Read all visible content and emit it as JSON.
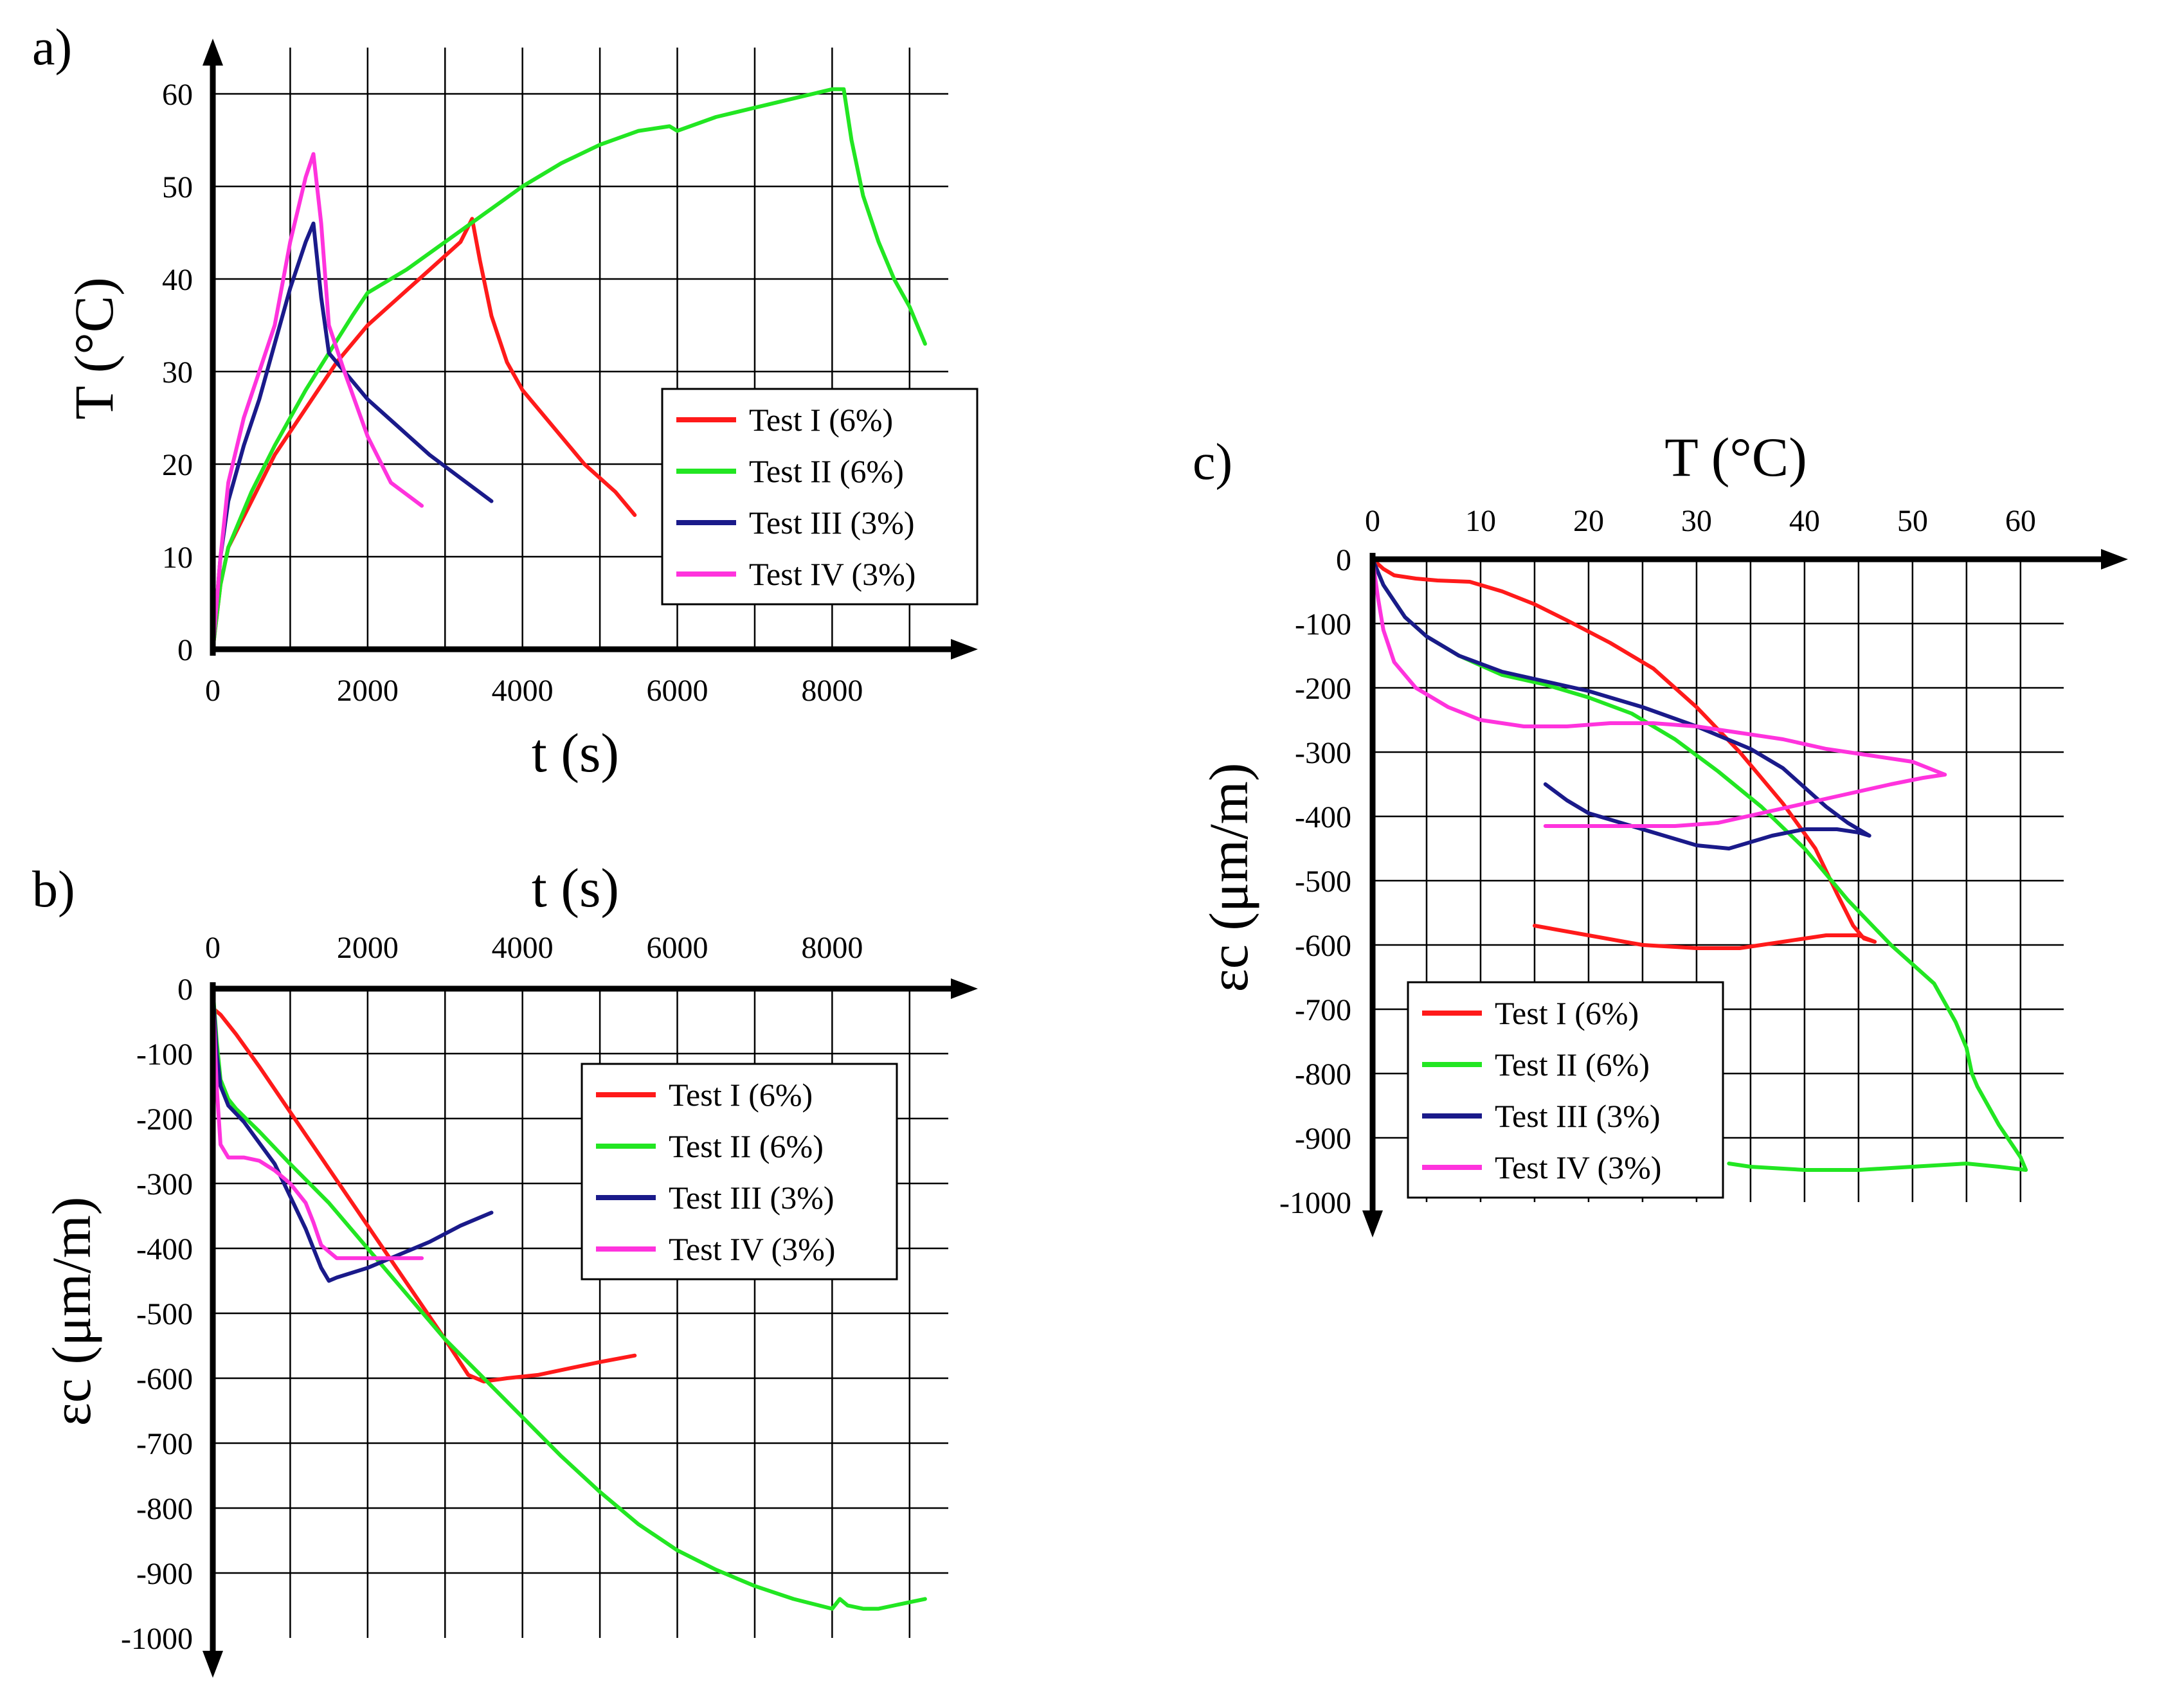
{
  "colors": {
    "test_i": "#ff1a1a",
    "test_ii": "#22e622",
    "test_iii": "#1a1a8a",
    "test_iv": "#ff33dd"
  },
  "chart_data": [
    {
      "id": "a",
      "type": "line",
      "panel_label": "a)",
      "xlabel": "t (s)",
      "ylabel": "T (°C)",
      "xlim": [
        0,
        9500
      ],
      "ylim": [
        0,
        65
      ],
      "xticks": [
        0,
        2000,
        4000,
        6000,
        8000
      ],
      "yticks": [
        0,
        10,
        20,
        30,
        40,
        50,
        60
      ],
      "xtick_labels": [
        "0",
        "2000",
        "4000",
        "6000",
        "8000"
      ],
      "ytick_labels": [
        "0",
        "10",
        "20",
        "30",
        "40",
        "50",
        "60"
      ],
      "xgrid": [
        0,
        1000,
        2000,
        3000,
        4000,
        5000,
        6000,
        7000,
        8000,
        9000
      ],
      "ygrid": [
        10,
        20,
        30,
        40,
        50,
        60
      ],
      "legend_position": "lower-right",
      "series": [
        {
          "name": "Test I (6%)",
          "color_key": "test_i",
          "x": [
            0,
            100,
            200,
            500,
            800,
            1200,
            1600,
            2000,
            2400,
            2800,
            3200,
            3350,
            3450,
            3600,
            3800,
            4000,
            4400,
            4800,
            5200,
            5450
          ],
          "y": [
            0,
            7,
            11,
            16,
            21,
            26,
            31,
            35,
            38,
            41,
            44,
            46.5,
            42,
            36,
            31,
            28,
            24,
            20,
            17,
            14.5
          ]
        },
        {
          "name": "Test II (6%)",
          "color_key": "test_ii",
          "x": [
            0,
            100,
            200,
            500,
            800,
            1200,
            1500,
            1800,
            2000,
            2500,
            3000,
            3500,
            4000,
            4500,
            5000,
            5500,
            5900,
            6000,
            6500,
            7000,
            7500,
            8000,
            8150,
            8250,
            8400,
            8600,
            8800,
            9000,
            9200
          ],
          "y": [
            0,
            7,
            11,
            17,
            22,
            28,
            32,
            36,
            38.5,
            41,
            44,
            47,
            50,
            52.5,
            54.5,
            56,
            56.5,
            56,
            57.5,
            58.5,
            59.5,
            60.5,
            60.5,
            55,
            49,
            44,
            40,
            37,
            33
          ]
        },
        {
          "name": "Test III (3%)",
          "color_key": "test_iii",
          "x": [
            0,
            100,
            200,
            400,
            600,
            800,
            1000,
            1200,
            1300,
            1400,
            1500,
            1700,
            2000,
            2400,
            2800,
            3200,
            3600
          ],
          "y": [
            0,
            10,
            16,
            22,
            27,
            33,
            39,
            44,
            46,
            38,
            32,
            30,
            27,
            24,
            21,
            18.5,
            16
          ]
        },
        {
          "name": "Test IV (3%)",
          "color_key": "test_iv",
          "x": [
            0,
            100,
            200,
            400,
            600,
            800,
            1000,
            1200,
            1300,
            1400,
            1500,
            1700,
            2000,
            2300,
            2700
          ],
          "y": [
            0,
            10,
            18,
            25,
            30,
            35,
            44,
            51,
            53.5,
            46,
            35,
            30,
            23,
            18,
            15.5
          ]
        }
      ]
    },
    {
      "id": "b",
      "type": "line",
      "panel_label": "b)",
      "xlabel": "t (s)",
      "ylabel": "εc (μm/m)",
      "xlim": [
        0,
        9500
      ],
      "ylim": [
        -1000,
        0
      ],
      "xticks": [
        0,
        2000,
        4000,
        6000,
        8000
      ],
      "yticks": [
        0,
        -100,
        -200,
        -300,
        -400,
        -500,
        -600,
        -700,
        -800,
        -900,
        -1000
      ],
      "xtick_labels": [
        "0",
        "2000",
        "4000",
        "6000",
        "8000"
      ],
      "ytick_labels": [
        "0",
        "-100",
        "-200",
        "-300",
        "-400",
        "-500",
        "-600",
        "-700",
        "-800",
        "-900",
        "-1000"
      ],
      "xgrid": [
        0,
        1000,
        2000,
        3000,
        4000,
        5000,
        6000,
        7000,
        8000,
        9000
      ],
      "ygrid": [
        -100,
        -200,
        -300,
        -400,
        -500,
        -600,
        -700,
        -800,
        -900
      ],
      "legend_position": "upper-right",
      "series": [
        {
          "name": "Test I (6%)",
          "color_key": "test_i",
          "x": [
            0,
            100,
            300,
            600,
            1000,
            1400,
            1800,
            2200,
            2600,
            3000,
            3300,
            3400,
            3500,
            3800,
            4200,
            4600,
            5000,
            5450
          ],
          "y": [
            -30,
            -40,
            -70,
            -120,
            -190,
            -260,
            -330,
            -400,
            -470,
            -540,
            -595,
            -600,
            -605,
            -600,
            -595,
            -585,
            -575,
            -565
          ]
        },
        {
          "name": "Test II (6%)",
          "color_key": "test_ii",
          "x": [
            0,
            50,
            100,
            200,
            300,
            600,
            1000,
            1500,
            2000,
            2500,
            3000,
            3500,
            4000,
            4500,
            5000,
            5500,
            6000,
            6500,
            7000,
            7500,
            8000,
            8100,
            8200,
            8400,
            8600,
            8800,
            9000,
            9200
          ],
          "y": [
            0,
            -80,
            -140,
            -170,
            -185,
            -220,
            -270,
            -330,
            -400,
            -470,
            -540,
            -600,
            -660,
            -720,
            -775,
            -825,
            -865,
            -895,
            -920,
            -940,
            -955,
            -940,
            -950,
            -955,
            -955,
            -950,
            -945,
            -940
          ]
        },
        {
          "name": "Test III (3%)",
          "color_key": "test_iii",
          "x": [
            0,
            50,
            100,
            200,
            400,
            800,
            1200,
            1400,
            1500,
            1600,
            2000,
            2400,
            2800,
            3200,
            3600
          ],
          "y": [
            0,
            -100,
            -150,
            -180,
            -205,
            -270,
            -370,
            -430,
            -450,
            -445,
            -430,
            -410,
            -390,
            -365,
            -345
          ]
        },
        {
          "name": "Test IV (3%)",
          "color_key": "test_iv",
          "x": [
            0,
            50,
            100,
            200,
            400,
            600,
            800,
            1000,
            1200,
            1300,
            1400,
            1600,
            2000,
            2400,
            2700
          ],
          "y": [
            0,
            -150,
            -240,
            -260,
            -260,
            -265,
            -280,
            -300,
            -330,
            -360,
            -395,
            -415,
            -415,
            -415,
            -415
          ]
        }
      ]
    },
    {
      "id": "c",
      "type": "line",
      "panel_label": "c)",
      "xlabel": "T (°C)",
      "ylabel": "εc (μm/m)",
      "xlim": [
        0,
        64
      ],
      "ylim": [
        -1000,
        0
      ],
      "xticks": [
        0,
        10,
        20,
        30,
        40,
        50,
        60
      ],
      "yticks": [
        0,
        -100,
        -200,
        -300,
        -400,
        -500,
        -600,
        -700,
        -800,
        -900,
        -1000
      ],
      "xtick_labels": [
        "0",
        "10",
        "20",
        "30",
        "40",
        "50",
        "60"
      ],
      "ytick_labels": [
        "0",
        "-100",
        "-200",
        "-300",
        "-400",
        "-500",
        "-600",
        "-700",
        "-800",
        "-900",
        "-1000"
      ],
      "xgrid": [
        5,
        10,
        15,
        20,
        25,
        30,
        35,
        40,
        45,
        50,
        55,
        60
      ],
      "ygrid": [
        -100,
        -200,
        -300,
        -400,
        -500,
        -600,
        -700,
        -800,
        -900
      ],
      "legend_position": "lower-left",
      "series": [
        {
          "name": "Test I (6%)",
          "color_key": "test_i",
          "x": [
            0,
            1,
            2,
            4,
            6,
            9,
            12,
            15,
            18,
            22,
            26,
            30,
            34,
            38,
            41,
            43,
            44.5,
            45.5,
            46.5,
            45,
            42,
            38,
            34,
            30,
            25,
            20,
            15
          ],
          "y": [
            0,
            -15,
            -25,
            -30,
            -33,
            -35,
            -50,
            -70,
            -95,
            -130,
            -170,
            -230,
            -300,
            -380,
            -450,
            -520,
            -570,
            -590,
            -595,
            -585,
            -585,
            -595,
            -605,
            -605,
            -600,
            -585,
            -570
          ]
        },
        {
          "name": "Test II (6%)",
          "color_key": "test_ii",
          "x": [
            0,
            1,
            3,
            5,
            8,
            12,
            16,
            20,
            24,
            28,
            32,
            36,
            40,
            44,
            48,
            52,
            54,
            55,
            55.5,
            56,
            57,
            58,
            60,
            60.5,
            58,
            55,
            50,
            45,
            40,
            35,
            33
          ],
          "y": [
            0,
            -40,
            -90,
            -120,
            -150,
            -180,
            -195,
            -215,
            -240,
            -280,
            -330,
            -385,
            -450,
            -530,
            -600,
            -660,
            -720,
            -760,
            -800,
            -820,
            -850,
            -880,
            -930,
            -950,
            -945,
            -940,
            -945,
            -950,
            -950,
            -945,
            -940
          ]
        },
        {
          "name": "Test III (3%)",
          "color_key": "test_iii",
          "x": [
            0,
            1,
            3,
            5,
            8,
            12,
            16,
            20,
            25,
            30,
            35,
            38,
            40,
            42,
            44,
            46,
            45,
            43,
            40,
            37,
            35,
            33,
            30,
            27,
            24,
            20,
            18,
            16
          ],
          "y": [
            0,
            -40,
            -90,
            -120,
            -150,
            -175,
            -190,
            -205,
            -230,
            -260,
            -295,
            -325,
            -355,
            -385,
            -410,
            -430,
            -425,
            -420,
            -420,
            -430,
            -440,
            -450,
            -445,
            -430,
            -415,
            -395,
            -375,
            -350
          ]
        },
        {
          "name": "Test IV (3%)",
          "color_key": "test_iv",
          "x": [
            0,
            0.5,
            1,
            2,
            4,
            7,
            10,
            14,
            18,
            22,
            26,
            30,
            34,
            38,
            42,
            46,
            50,
            53,
            51,
            48,
            44,
            40,
            36,
            32,
            28,
            24,
            20,
            16
          ],
          "y": [
            0,
            -60,
            -110,
            -160,
            -200,
            -230,
            -250,
            -260,
            -260,
            -255,
            -255,
            -260,
            -270,
            -280,
            -295,
            -305,
            -315,
            -335,
            -340,
            -350,
            -365,
            -380,
            -395,
            -410,
            -415,
            -415,
            -415,
            -415
          ]
        }
      ]
    }
  ]
}
